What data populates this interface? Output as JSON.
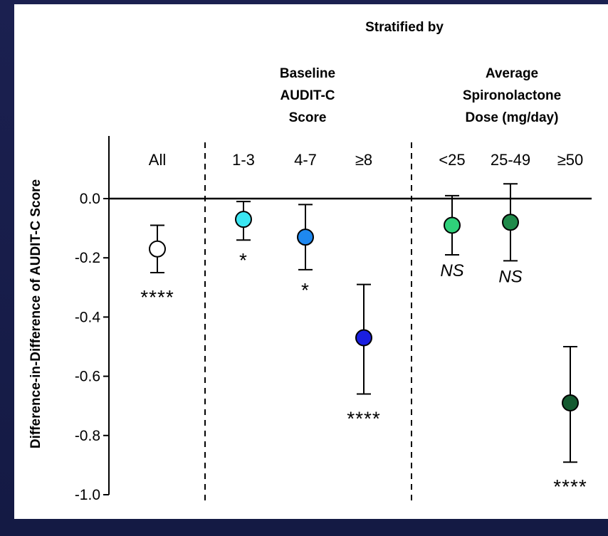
{
  "header": {
    "stratified_by": "Stratified by",
    "group_baseline": [
      "Baseline",
      "AUDIT-C",
      "Score"
    ],
    "group_dose": [
      "Average",
      "Spironolactone",
      "Dose (mg/day)"
    ]
  },
  "chart_data": {
    "type": "scatter",
    "ylabel": "Difference-in-Difference of AUDIT-C Score",
    "ylim": [
      -1.0,
      0.2
    ],
    "yticks": [
      "0.0",
      "-0.2",
      "-0.4",
      "-0.6",
      "-0.8",
      "-1.0"
    ],
    "ytick_values": [
      0.0,
      -0.2,
      -0.4,
      -0.6,
      -0.8,
      -1.0
    ],
    "reference_line": 0.0,
    "categories": [
      "All",
      "1-3",
      "4-7",
      "≥8",
      "<25",
      "25-49",
      "≥50"
    ],
    "points": [
      {
        "category": "All",
        "value": -0.17,
        "lower": -0.25,
        "upper": -0.09,
        "color": "#ffffff",
        "significance": "****"
      },
      {
        "category": "1-3",
        "value": -0.07,
        "lower": -0.14,
        "upper": -0.01,
        "color": "#3be6f2",
        "significance": "*"
      },
      {
        "category": "4-7",
        "value": -0.13,
        "lower": -0.24,
        "upper": -0.02,
        "color": "#1e88f0",
        "significance": "*"
      },
      {
        "category": "≥8",
        "value": -0.47,
        "lower": -0.66,
        "upper": -0.29,
        "color": "#1a1fe0",
        "significance": "****"
      },
      {
        "category": "<25",
        "value": -0.09,
        "lower": -0.19,
        "upper": 0.01,
        "color": "#2fd17a",
        "significance": "NS"
      },
      {
        "category": "25-49",
        "value": -0.08,
        "lower": -0.21,
        "upper": 0.05,
        "color": "#1f8a4a",
        "significance": "NS"
      },
      {
        "category": "≥50",
        "value": -0.69,
        "lower": -0.89,
        "upper": -0.5,
        "color": "#145a30",
        "significance": "****"
      }
    ],
    "groups": [
      {
        "label": "Baseline AUDIT-C Score",
        "categories": [
          "1-3",
          "4-7",
          "≥8"
        ]
      },
      {
        "label": "Average Spironolactone Dose (mg/day)",
        "categories": [
          "<25",
          "25-49",
          "≥50"
        ]
      }
    ]
  }
}
